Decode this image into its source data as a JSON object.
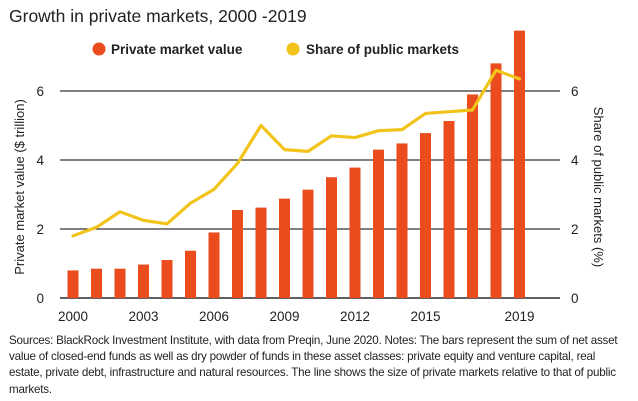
{
  "title": "Growth in private markets, 2000 -2019",
  "source_note": "Sources: BlackRock Investment Institute, with data from Preqin, June 2020. Notes: The bars represent the sum of net asset value of closed-end funds as well as dry powder of funds in these asset classes: private equity and venture capital, real estate, private debt, infrastructure and natural resources. The line shows the size of private markets relative to that of public markets.",
  "colors": {
    "bar": "#ea4c1d",
    "line": "#f2c31a",
    "grid": "#000000",
    "text": "#222222"
  },
  "chart_data": {
    "type": "bar",
    "title": "Growth in private markets, 2000 -2019",
    "x": [
      2000,
      2001,
      2002,
      2003,
      2004,
      2005,
      2006,
      2007,
      2008,
      2009,
      2010,
      2011,
      2012,
      2013,
      2014,
      2015,
      2016,
      2017,
      2018,
      2019
    ],
    "x_ticks": [
      "2000",
      "2003",
      "2006",
      "2009",
      "2012",
      "2015",
      "2019"
    ],
    "x_tick_values": [
      2000,
      2003,
      2006,
      2009,
      2012,
      2015,
      2019
    ],
    "ylabel": "Private market value ($ trillion)",
    "ylabel_right": "Share of public markets (%)",
    "ylim": [
      0,
      7.6
    ],
    "y_ticks": [
      "0",
      "2",
      "4",
      "6"
    ],
    "y_tick_values": [
      0,
      2,
      4,
      6
    ],
    "grid": "horizontal",
    "legend": "top",
    "series": [
      {
        "name": "Private market value",
        "kind": "bar",
        "axis": "left",
        "values": [
          0.8,
          0.85,
          0.85,
          0.97,
          1.1,
          1.37,
          1.9,
          2.55,
          2.62,
          2.88,
          3.14,
          3.5,
          3.78,
          4.3,
          4.48,
          4.78,
          5.13,
          5.9,
          6.8,
          7.75
        ]
      },
      {
        "name": "Share of public markets",
        "kind": "line",
        "axis": "right",
        "values": [
          1.8,
          2.05,
          2.5,
          2.25,
          2.15,
          2.75,
          3.15,
          3.9,
          5.0,
          4.3,
          4.25,
          4.7,
          4.65,
          4.85,
          4.88,
          5.35,
          5.4,
          5.45,
          6.6,
          6.35
        ]
      }
    ]
  }
}
